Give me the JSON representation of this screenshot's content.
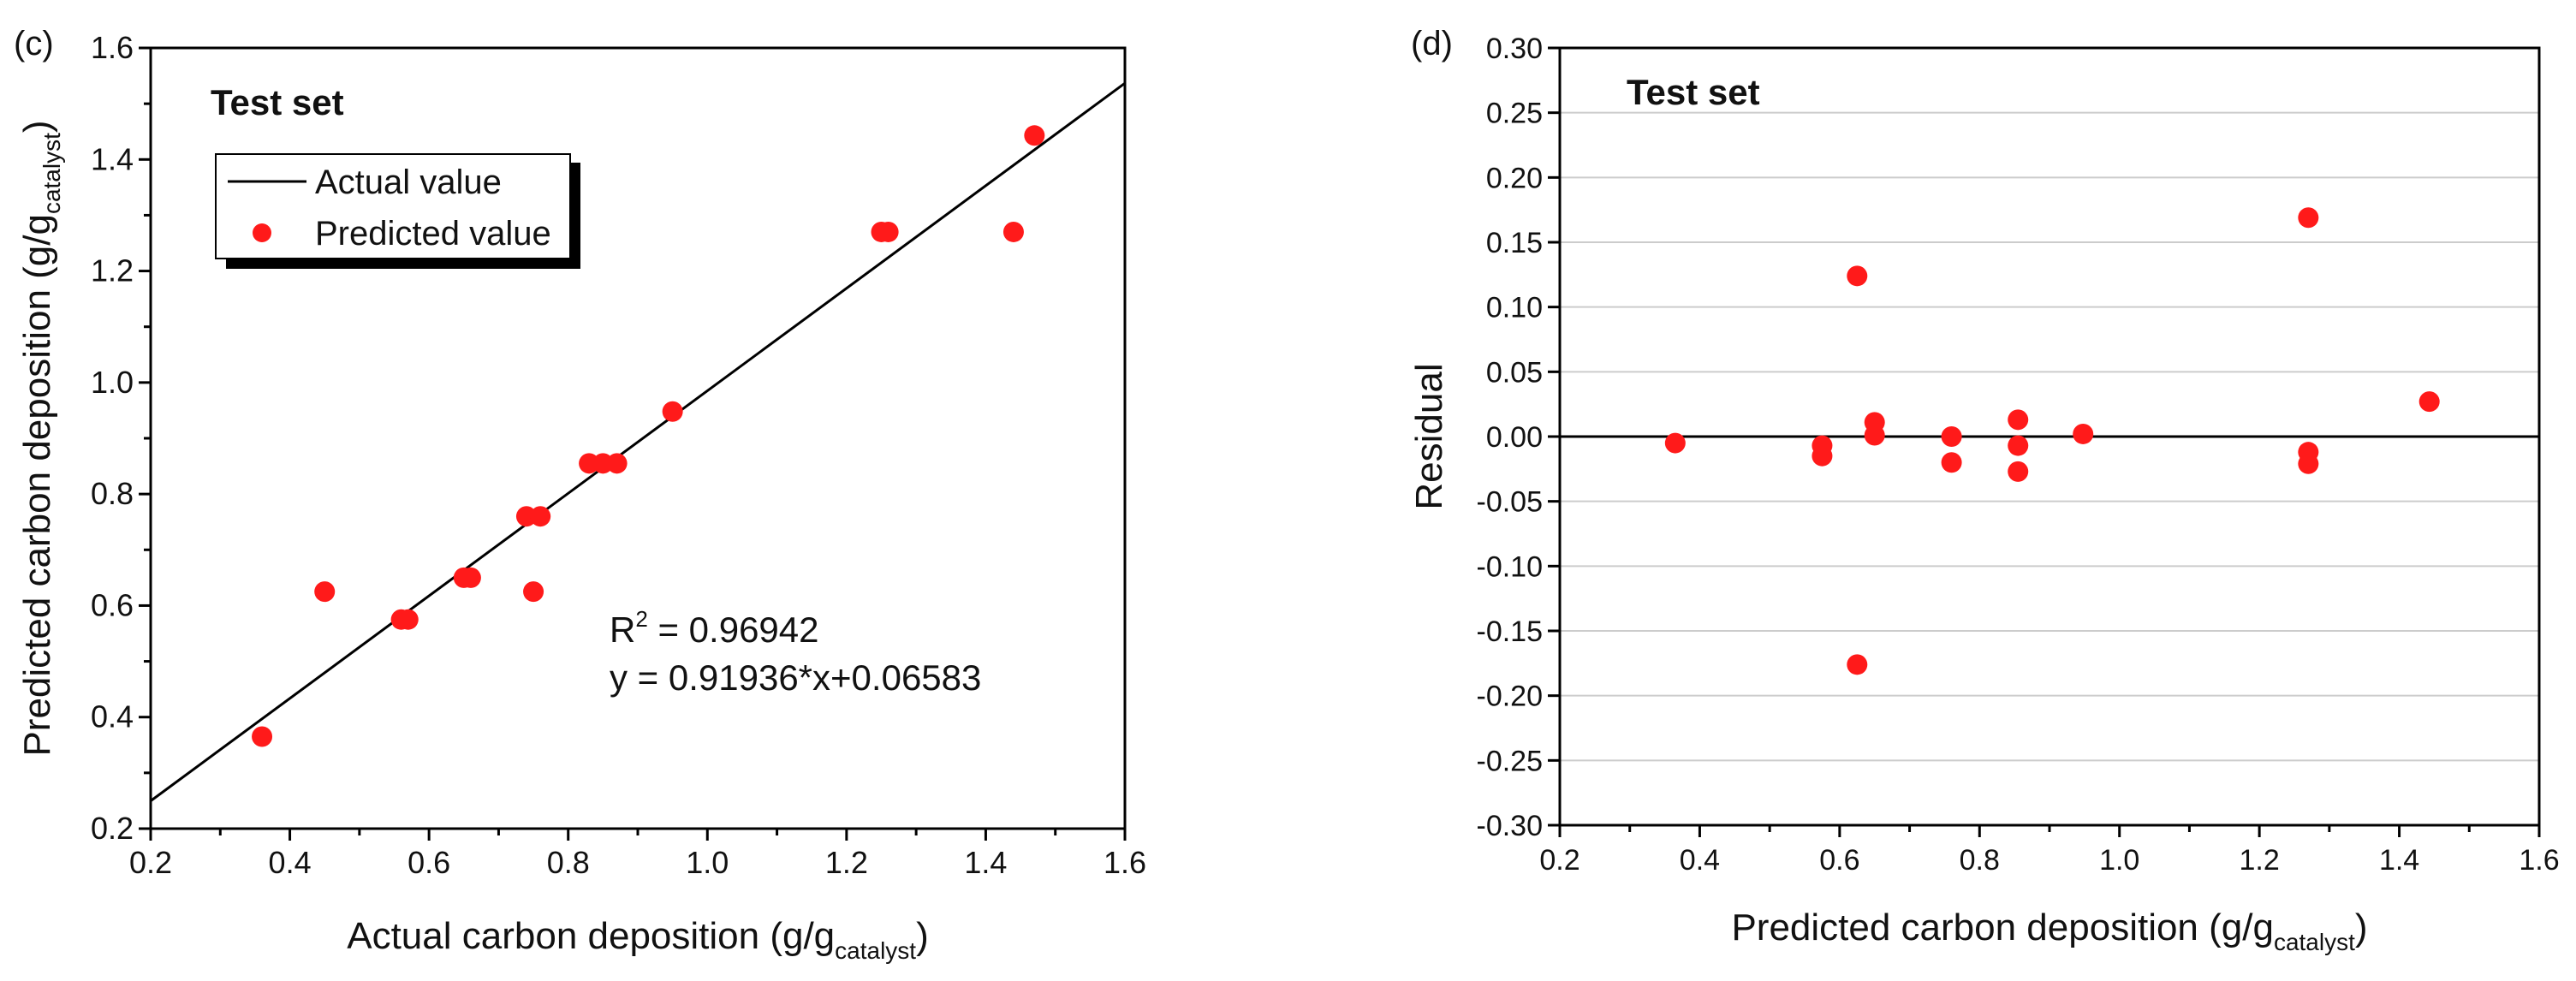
{
  "colors": {
    "axis": "#000000",
    "point": "#ff1a1a",
    "grid": "#cccccc"
  },
  "chart_data": [
    {
      "panel": "(c)",
      "type": "scatter",
      "title": "Test set",
      "xlabel": "Actual carbon deposition (g/g",
      "xlabel_sub": "catalyst",
      "xlabel_tail": ")",
      "ylabel": "Predicted carbon deposition (g/g",
      "ylabel_sub": "catalyst",
      "ylabel_tail": ")",
      "xlim": [
        0.2,
        1.6
      ],
      "ylim": [
        0.2,
        1.6
      ],
      "xticks": [
        "0.2",
        "0.4",
        "0.6",
        "0.8",
        "1.0",
        "1.2",
        "1.4",
        "1.6"
      ],
      "yticks": [
        "0.2",
        "0.4",
        "0.6",
        "0.8",
        "1.0",
        "1.2",
        "1.4",
        "1.6"
      ],
      "grid": false,
      "legend": {
        "position": "top-left",
        "items": [
          {
            "label": "Actual value",
            "marker": "line"
          },
          {
            "label": "Predicted value",
            "marker": "circle"
          }
        ]
      },
      "fit_line": {
        "slope": 0.91936,
        "intercept": 0.06583
      },
      "annotation": {
        "r2_label": "R",
        "r2_sup": "2",
        "r2_value": " = 0.96942",
        "equation": "y = 0.91936*x+0.06583"
      },
      "series": [
        {
          "name": "Predicted value",
          "x": [
            0.36,
            0.45,
            0.56,
            0.57,
            0.65,
            0.66,
            0.74,
            0.75,
            0.76,
            0.83,
            0.85,
            0.87,
            0.95,
            1.25,
            1.26,
            1.44,
            1.47
          ],
          "y": [
            0.365,
            0.625,
            0.575,
            0.575,
            0.65,
            0.65,
            0.76,
            0.625,
            0.76,
            0.855,
            0.855,
            0.855,
            0.948,
            1.27,
            1.27,
            1.27,
            1.443
          ]
        }
      ]
    },
    {
      "panel": "(d)",
      "type": "scatter",
      "title": "Test set",
      "xlabel": "Predicted carbon deposition (g/g",
      "xlabel_sub": "catalyst",
      "xlabel_tail": ")",
      "ylabel": "Residual",
      "xlim": [
        0.2,
        1.6
      ],
      "ylim": [
        -0.3,
        0.3
      ],
      "xticks": [
        "0.2",
        "0.4",
        "0.6",
        "0.8",
        "1.0",
        "1.2",
        "1.4",
        "1.6"
      ],
      "yticks": [
        "-0.30",
        "-0.25",
        "-0.20",
        "-0.15",
        "-0.10",
        "-0.05",
        "0.00",
        "0.05",
        "0.10",
        "0.15",
        "0.20",
        "0.25",
        "0.30"
      ],
      "grid": true,
      "reference_line": 0,
      "series": [
        {
          "name": "Residual",
          "x": [
            0.365,
            0.575,
            0.575,
            0.625,
            0.625,
            0.65,
            0.65,
            0.76,
            0.76,
            0.855,
            0.855,
            0.855,
            0.948,
            1.27,
            1.27,
            1.27,
            1.443
          ],
          "y": [
            -0.005,
            -0.007,
            -0.015,
            0.124,
            -0.176,
            0.011,
            0.001,
            0.0,
            -0.02,
            0.013,
            -0.007,
            -0.027,
            0.002,
            0.169,
            -0.012,
            -0.021,
            0.027
          ]
        }
      ]
    }
  ]
}
